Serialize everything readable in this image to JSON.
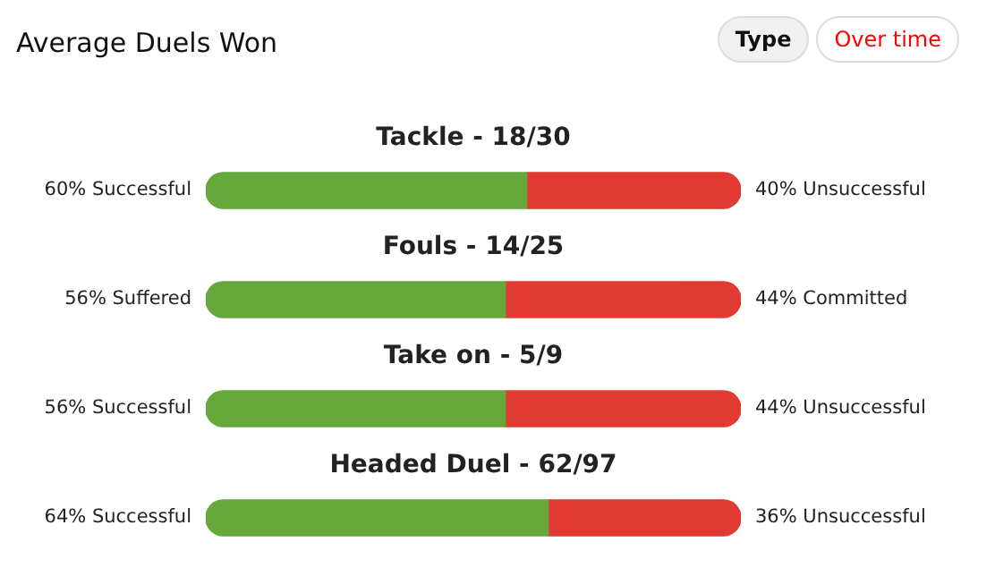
{
  "chart_data": {
    "type": "bar",
    "orientation": "horizontal",
    "stacked": true,
    "title": "Average Duels Won",
    "annotations": [
      "Type",
      "Over time"
    ],
    "categories": [
      "Tackle - 18/30",
      "Fouls - 14/25",
      "Take on - 5/9",
      "Headed Duel - 62/97"
    ],
    "series": [
      {
        "color": "#67a83c",
        "values": [
          60,
          56,
          56,
          64
        ],
        "value_labels": [
          "60% Successful",
          "56% Suffered",
          "56% Successful",
          "64% Successful"
        ]
      },
      {
        "color": "#e03a33",
        "values": [
          40,
          44,
          44,
          36
        ],
        "value_labels": [
          "40% Unsuccessful",
          "44% Committed",
          "44% Unsuccessful",
          "36% Unsuccessful"
        ]
      }
    ],
    "xlim": [
      0,
      100
    ],
    "legend": false
  }
}
